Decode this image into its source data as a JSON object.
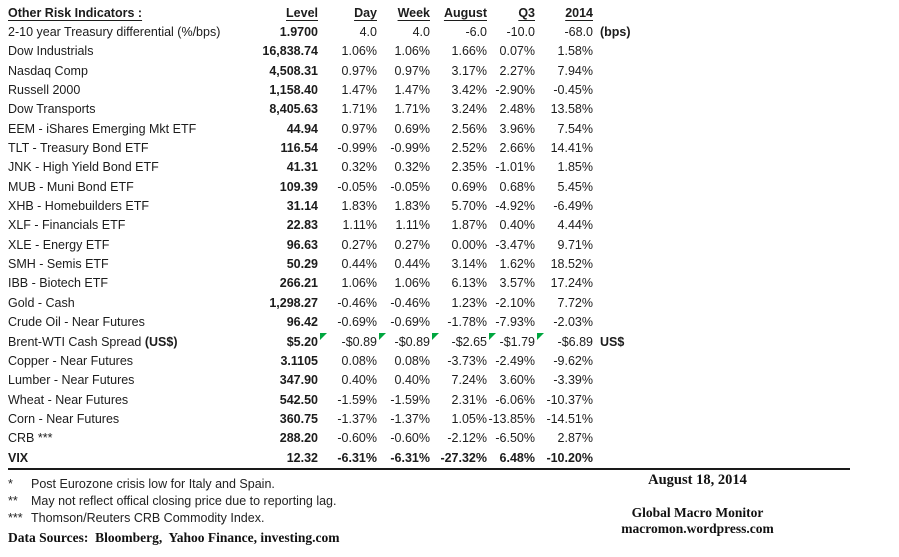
{
  "table": {
    "title": "Other Risk Indicators :",
    "headers": {
      "level": "Level",
      "day": "Day",
      "week": "Week",
      "august": "August",
      "q3": "Q3",
      "y2014": "2014"
    },
    "rows": [
      {
        "label": "2-10 year Treasury differential (%/bps)",
        "level": "1.9700",
        "day": "4.0",
        "week": "4.0",
        "august": "-6.0",
        "q3": "-10.0",
        "y2014": "-68.0",
        "note": "(bps)"
      },
      {
        "label": "Dow Industrials",
        "level": "16,838.74",
        "day": "1.06%",
        "week": "1.06%",
        "august": "1.66%",
        "q3": "0.07%",
        "y2014": "1.58%"
      },
      {
        "label": "Nasdaq Comp",
        "level": "4,508.31",
        "day": "0.97%",
        "week": "0.97%",
        "august": "3.17%",
        "q3": "2.27%",
        "y2014": "7.94%"
      },
      {
        "label": "Russell 2000",
        "level": "1,158.40",
        "day": "1.47%",
        "week": "1.47%",
        "august": "3.42%",
        "q3": "-2.90%",
        "y2014": "-0.45%"
      },
      {
        "label": "Dow Transports",
        "level": "8,405.63",
        "day": "1.71%",
        "week": "1.71%",
        "august": "3.24%",
        "q3": "2.48%",
        "y2014": "13.58%"
      },
      {
        "label": "EEM - iShares Emerging Mkt ETF",
        "level": "44.94",
        "day": "0.97%",
        "week": "0.69%",
        "august": "2.56%",
        "q3": "3.96%",
        "y2014": "7.54%"
      },
      {
        "label": "TLT - Treasury Bond ETF",
        "level": "116.54",
        "day": "-0.99%",
        "week": "-0.99%",
        "august": "2.52%",
        "q3": "2.66%",
        "y2014": "14.41%"
      },
      {
        "label": "JNK - High Yield Bond ETF",
        "level": "41.31",
        "day": "0.32%",
        "week": "0.32%",
        "august": "2.35%",
        "q3": "-1.01%",
        "y2014": "1.85%"
      },
      {
        "label": "MUB - Muni Bond ETF",
        "level": "109.39",
        "day": "-0.05%",
        "week": "-0.05%",
        "august": "0.69%",
        "q3": "0.68%",
        "y2014": "5.45%"
      },
      {
        "label": "XHB - Homebuilders ETF",
        "level": "31.14",
        "day": "1.83%",
        "week": "1.83%",
        "august": "5.70%",
        "q3": "-4.92%",
        "y2014": "-6.49%"
      },
      {
        "label": "XLF - Financials ETF",
        "level": "22.83",
        "day": "1.11%",
        "week": "1.11%",
        "august": "1.87%",
        "q3": "0.40%",
        "y2014": "4.44%"
      },
      {
        "label": "XLE - Energy ETF",
        "level": "96.63",
        "day": "0.27%",
        "week": "0.27%",
        "august": "0.00%",
        "q3": "-3.47%",
        "y2014": "9.71%"
      },
      {
        "label": "SMH - Semis ETF",
        "level": "50.29",
        "day": "0.44%",
        "week": "0.44%",
        "august": "3.14%",
        "q3": "1.62%",
        "y2014": "18.52%"
      },
      {
        "label": "IBB - Biotech ETF",
        "level": "266.21",
        "day": "1.06%",
        "week": "1.06%",
        "august": "6.13%",
        "q3": "3.57%",
        "y2014": "17.24%"
      },
      {
        "label": "Gold - Cash",
        "level": "1,298.27",
        "day": "-0.46%",
        "week": "-0.46%",
        "august": "1.23%",
        "q3": "-2.10%",
        "y2014": "7.72%"
      },
      {
        "label": "Crude Oil - Near Futures",
        "level": "96.42",
        "day": "-0.69%",
        "week": "-0.69%",
        "august": "-1.78%",
        "q3": "-7.93%",
        "y2014": "-2.03%"
      },
      {
        "label": "Brent-WTI Cash Spread ",
        "label_bold": "(US$)",
        "level": "$5.20",
        "day": "-$0.89",
        "week": "-$0.89",
        "august": "-$2.65",
        "q3": "-$1.79",
        "y2014": "-$6.89",
        "note": "US$",
        "flags": true
      },
      {
        "label": "Copper - Near Futures",
        "level": "3.1105",
        "day": "0.08%",
        "week": "0.08%",
        "august": "-3.73%",
        "q3": "-2.49%",
        "y2014": "-9.62%"
      },
      {
        "label": "Lumber - Near Futures",
        "level": "347.90",
        "day": "0.40%",
        "week": "0.40%",
        "august": "7.24%",
        "q3": "3.60%",
        "y2014": "-3.39%"
      },
      {
        "label": "Wheat - Near Futures",
        "level": "542.50",
        "day": "-1.59%",
        "week": "-1.59%",
        "august": "2.31%",
        "q3": "-6.06%",
        "y2014": "-10.37%"
      },
      {
        "label": "Corn - Near Futures",
        "level": "360.75",
        "day": "-1.37%",
        "week": "-1.37%",
        "august": "1.05%",
        "q3": "-13.85%",
        "y2014": "-14.51%"
      },
      {
        "label": "CRB ***",
        "level": "288.20",
        "day": "-0.60%",
        "week": "-0.60%",
        "august": "-2.12%",
        "q3": "-6.50%",
        "y2014": "2.87%"
      },
      {
        "label": "VIX",
        "level": "12.32",
        "day": "-6.31%",
        "week": "-6.31%",
        "august": "-27.32%",
        "q3": "6.48%",
        "y2014": "-10.20%",
        "bold": true
      }
    ]
  },
  "footnotes": [
    {
      "mark": "*",
      "text": "Post Eurozone crisis low for Italy and Spain."
    },
    {
      "mark": "**",
      "text": "May not reflect offical closing price due to reporting lag."
    },
    {
      "mark": "***",
      "text": "Thomson/Reuters CRB Commodity Index."
    }
  ],
  "data_sources": "Data Sources:  Bloomberg,  Yahoo Finance, investing.com",
  "footer_right": {
    "date": "August 18, 2014",
    "site_name": "Global Macro Monitor",
    "site_url": "macromon.wordpress.com"
  },
  "colors": {
    "background": "#ffffff",
    "text": "#1c1c1c",
    "flag_green": "#00a63f",
    "rule": "#1a1a1a"
  }
}
